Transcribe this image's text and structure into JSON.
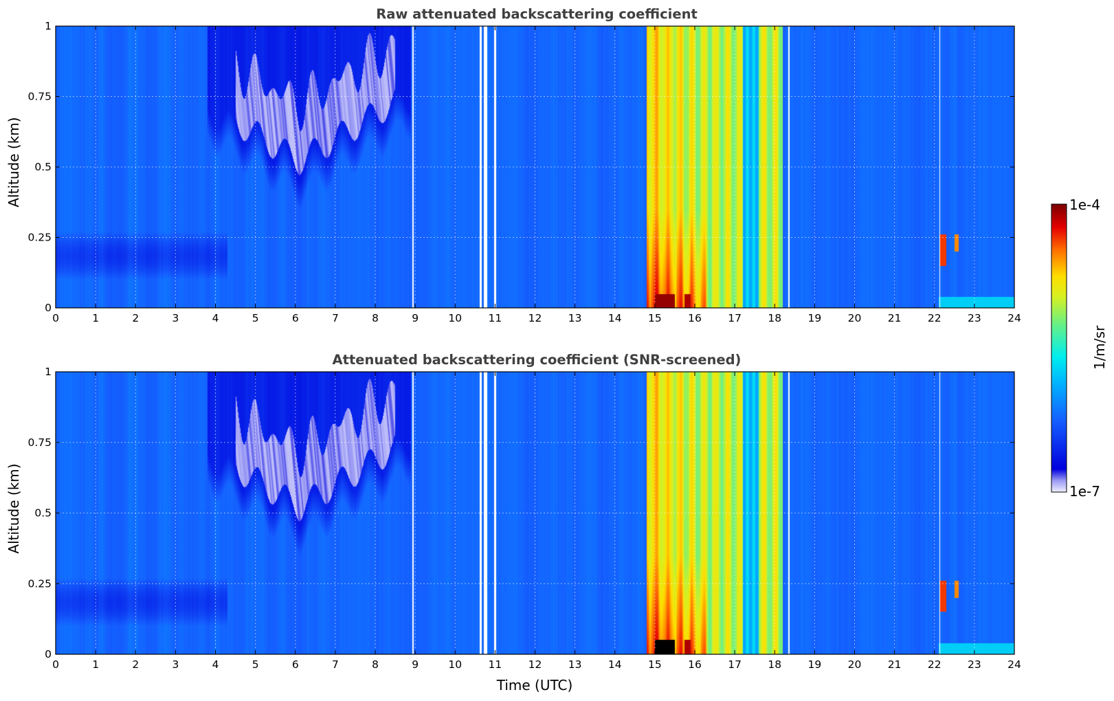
{
  "chart_data": [
    {
      "type": "heatmap",
      "title": "Raw attenuated backscattering coefficient",
      "xlabel": "",
      "ylabel": "Altitude (km)",
      "xlim": [
        0,
        24
      ],
      "ylim": [
        0,
        1
      ],
      "xticks": [
        "0",
        "1",
        "2",
        "3",
        "4",
        "5",
        "6",
        "7",
        "8",
        "9",
        "10",
        "11",
        "12",
        "13",
        "14",
        "15",
        "16",
        "17",
        "18",
        "19",
        "20",
        "21",
        "22",
        "23",
        "24"
      ],
      "yticks": [
        "0",
        "0.25",
        "0.5",
        "0.75",
        "1"
      ],
      "grid": true,
      "screened": false
    },
    {
      "type": "heatmap",
      "title": "Attenuated backscattering coefficient (SNR-screened)",
      "xlabel": "Time (UTC)",
      "ylabel": "Altitude (km)",
      "xlim": [
        0,
        24
      ],
      "ylim": [
        0,
        1
      ],
      "xticks": [
        "0",
        "1",
        "2",
        "3",
        "4",
        "5",
        "6",
        "7",
        "8",
        "9",
        "10",
        "11",
        "12",
        "13",
        "14",
        "15",
        "16",
        "17",
        "18",
        "19",
        "20",
        "21",
        "22",
        "23",
        "24"
      ],
      "yticks": [
        "0",
        "0.25",
        "0.5",
        "0.75",
        "1"
      ],
      "grid": true,
      "screened": true
    }
  ],
  "colorbar": {
    "label": "1/m/sr",
    "max_label": "1e-4",
    "min_label": "1e-7",
    "scale": "log",
    "colormap": "jet"
  },
  "features": {
    "data_gaps_utc": [
      [
        8.93,
        8.96
      ],
      [
        10.62,
        10.66
      ],
      [
        10.72,
        10.8
      ],
      [
        10.97,
        11.02
      ],
      [
        18.34,
        18.37
      ],
      [
        22.12,
        22.15
      ]
    ],
    "fog_layer_utc": [
      14.8,
      18.2
    ],
    "low_layer_km": [
      0.1,
      0.27
    ],
    "clear_air_patch": {
      "start_utc": 4.5,
      "end_utc": 8.5,
      "base_km": [
        0.52,
        0.75
      ]
    }
  }
}
